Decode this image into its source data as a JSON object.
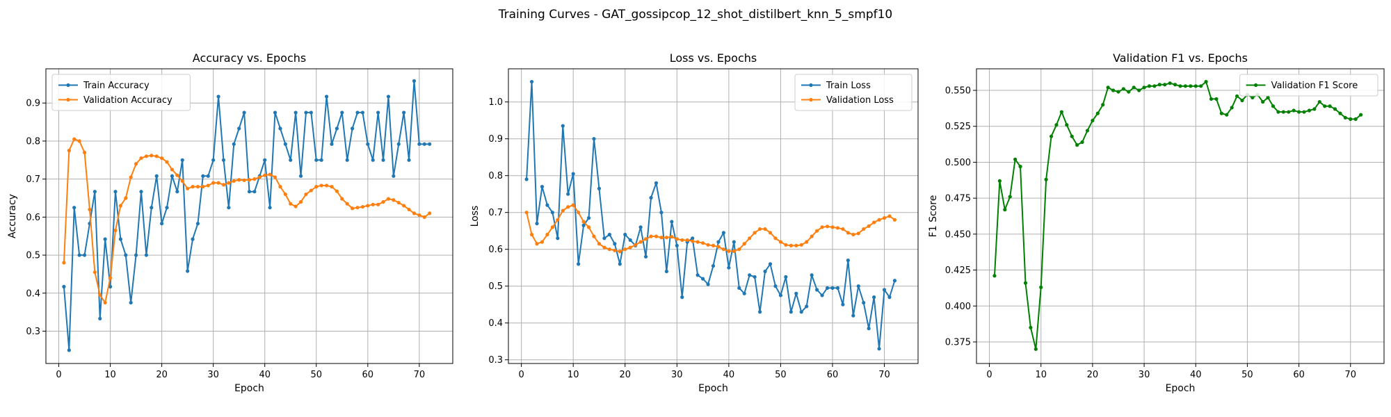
{
  "suptitle": "Training Curves - GAT_gossipcop_12_shot_distilbert_knn_5_smpf10",
  "chart_data": [
    {
      "type": "line",
      "title": "Accuracy vs. Epochs",
      "xlabel": "Epoch",
      "ylabel": "Accuracy",
      "xlim": [
        -2.5,
        76.5
      ],
      "ylim": [
        0.215,
        0.99
      ],
      "xticks": [
        0,
        10,
        20,
        30,
        40,
        50,
        60,
        70
      ],
      "yticks": [
        0.3,
        0.4,
        0.5,
        0.6,
        0.7,
        0.8,
        0.9
      ],
      "ytick_decimals": 1,
      "grid": true,
      "legend": "upper-left",
      "x_start": 1,
      "series": [
        {
          "name": "Train Accuracy",
          "color": "#1f77b4",
          "values": [
            0.417,
            0.25,
            0.625,
            0.5,
            0.5,
            0.583,
            0.667,
            0.333,
            0.542,
            0.417,
            0.667,
            0.542,
            0.5,
            0.375,
            0.5,
            0.667,
            0.5,
            0.625,
            0.708,
            0.583,
            0.625,
            0.708,
            0.667,
            0.75,
            0.458,
            0.542,
            0.583,
            0.708,
            0.708,
            0.75,
            0.917,
            0.75,
            0.625,
            0.792,
            0.833,
            0.875,
            0.667,
            0.667,
            0.708,
            0.75,
            0.625,
            0.875,
            0.833,
            0.792,
            0.75,
            0.875,
            0.708,
            0.875,
            0.875,
            0.75,
            0.75,
            0.917,
            0.792,
            0.833,
            0.875,
            0.75,
            0.833,
            0.875,
            0.875,
            0.792,
            0.75,
            0.875,
            0.75,
            0.917,
            0.708,
            0.792,
            0.875,
            0.75,
            0.958,
            0.792,
            0.792,
            0.792
          ]
        },
        {
          "name": "Validation Accuracy",
          "color": "#ff7f0e",
          "values": [
            0.48,
            0.775,
            0.805,
            0.8,
            0.77,
            0.62,
            0.455,
            0.395,
            0.375,
            0.44,
            0.565,
            0.63,
            0.65,
            0.705,
            0.74,
            0.755,
            0.76,
            0.762,
            0.76,
            0.755,
            0.745,
            0.725,
            0.71,
            0.695,
            0.675,
            0.68,
            0.68,
            0.68,
            0.683,
            0.69,
            0.69,
            0.685,
            0.69,
            0.695,
            0.698,
            0.697,
            0.698,
            0.7,
            0.705,
            0.71,
            0.712,
            0.705,
            0.68,
            0.66,
            0.635,
            0.628,
            0.64,
            0.66,
            0.67,
            0.68,
            0.683,
            0.683,
            0.68,
            0.668,
            0.648,
            0.635,
            0.623,
            0.625,
            0.627,
            0.63,
            0.633,
            0.633,
            0.64,
            0.648,
            0.645,
            0.638,
            0.63,
            0.62,
            0.61,
            0.605,
            0.6,
            0.61
          ]
        }
      ]
    },
    {
      "type": "line",
      "title": "Loss vs. Epochs",
      "xlabel": "Epoch",
      "ylabel": "Loss",
      "xlim": [
        -2.5,
        76.5
      ],
      "ylim": [
        0.29,
        1.09
      ],
      "xticks": [
        0,
        10,
        20,
        30,
        40,
        50,
        60,
        70
      ],
      "yticks": [
        0.3,
        0.4,
        0.5,
        0.6,
        0.7,
        0.8,
        0.9,
        1.0
      ],
      "ytick_decimals": 1,
      "grid": true,
      "legend": "upper-right",
      "x_start": 1,
      "series": [
        {
          "name": "Train Loss",
          "color": "#1f77b4",
          "values": [
            0.79,
            1.055,
            0.67,
            0.77,
            0.72,
            0.7,
            0.63,
            0.935,
            0.75,
            0.805,
            0.56,
            0.665,
            0.685,
            0.9,
            0.765,
            0.63,
            0.64,
            0.615,
            0.56,
            0.64,
            0.625,
            0.61,
            0.66,
            0.58,
            0.74,
            0.78,
            0.7,
            0.54,
            0.675,
            0.61,
            0.47,
            0.62,
            0.63,
            0.53,
            0.52,
            0.505,
            0.555,
            0.62,
            0.645,
            0.55,
            0.62,
            0.495,
            0.48,
            0.53,
            0.525,
            0.43,
            0.54,
            0.56,
            0.5,
            0.475,
            0.525,
            0.43,
            0.48,
            0.43,
            0.445,
            0.53,
            0.49,
            0.475,
            0.495,
            0.495,
            0.495,
            0.45,
            0.57,
            0.42,
            0.5,
            0.455,
            0.385,
            0.47,
            0.33,
            0.49,
            0.47,
            0.515
          ]
        },
        {
          "name": "Validation Loss",
          "color": "#ff7f0e",
          "values": [
            0.7,
            0.64,
            0.615,
            0.62,
            0.64,
            0.66,
            0.68,
            0.705,
            0.715,
            0.72,
            0.7,
            0.675,
            0.66,
            0.635,
            0.615,
            0.605,
            0.6,
            0.597,
            0.594,
            0.6,
            0.605,
            0.612,
            0.62,
            0.628,
            0.635,
            0.635,
            0.632,
            0.632,
            0.634,
            0.628,
            0.625,
            0.625,
            0.622,
            0.62,
            0.617,
            0.612,
            0.61,
            0.607,
            0.6,
            0.595,
            0.595,
            0.6,
            0.615,
            0.63,
            0.645,
            0.655,
            0.655,
            0.645,
            0.63,
            0.62,
            0.612,
            0.61,
            0.61,
            0.612,
            0.62,
            0.635,
            0.65,
            0.66,
            0.662,
            0.66,
            0.658,
            0.655,
            0.645,
            0.64,
            0.643,
            0.655,
            0.663,
            0.673,
            0.68,
            0.685,
            0.69,
            0.68
          ]
        }
      ]
    },
    {
      "type": "line",
      "title": "Validation F1 vs. Epochs",
      "xlabel": "Epoch",
      "ylabel": "F1 Score",
      "xlim": [
        -2.5,
        76.5
      ],
      "ylim": [
        0.36,
        0.565
      ],
      "xticks": [
        0,
        10,
        20,
        30,
        40,
        50,
        60,
        70
      ],
      "yticks": [
        0.375,
        0.4,
        0.425,
        0.45,
        0.475,
        0.5,
        0.525,
        0.55
      ],
      "ytick_decimals": 3,
      "grid": true,
      "legend": "upper-right",
      "x_start": 1,
      "series": [
        {
          "name": "Validation F1 Score",
          "color": "#008000",
          "values": [
            0.421,
            0.487,
            0.467,
            0.476,
            0.502,
            0.497,
            0.416,
            0.385,
            0.37,
            0.413,
            0.488,
            0.518,
            0.526,
            0.535,
            0.526,
            0.518,
            0.512,
            0.514,
            0.522,
            0.529,
            0.534,
            0.54,
            0.552,
            0.55,
            0.549,
            0.551,
            0.549,
            0.552,
            0.55,
            0.552,
            0.553,
            0.553,
            0.554,
            0.554,
            0.555,
            0.554,
            0.553,
            0.553,
            0.553,
            0.553,
            0.553,
            0.556,
            0.544,
            0.544,
            0.534,
            0.533,
            0.538,
            0.546,
            0.543,
            0.547,
            0.545,
            0.547,
            0.542,
            0.545,
            0.539,
            0.535,
            0.535,
            0.535,
            0.536,
            0.535,
            0.535,
            0.536,
            0.537,
            0.542,
            0.539,
            0.539,
            0.537,
            0.534,
            0.531,
            0.53,
            0.53,
            0.533
          ]
        }
      ]
    }
  ]
}
